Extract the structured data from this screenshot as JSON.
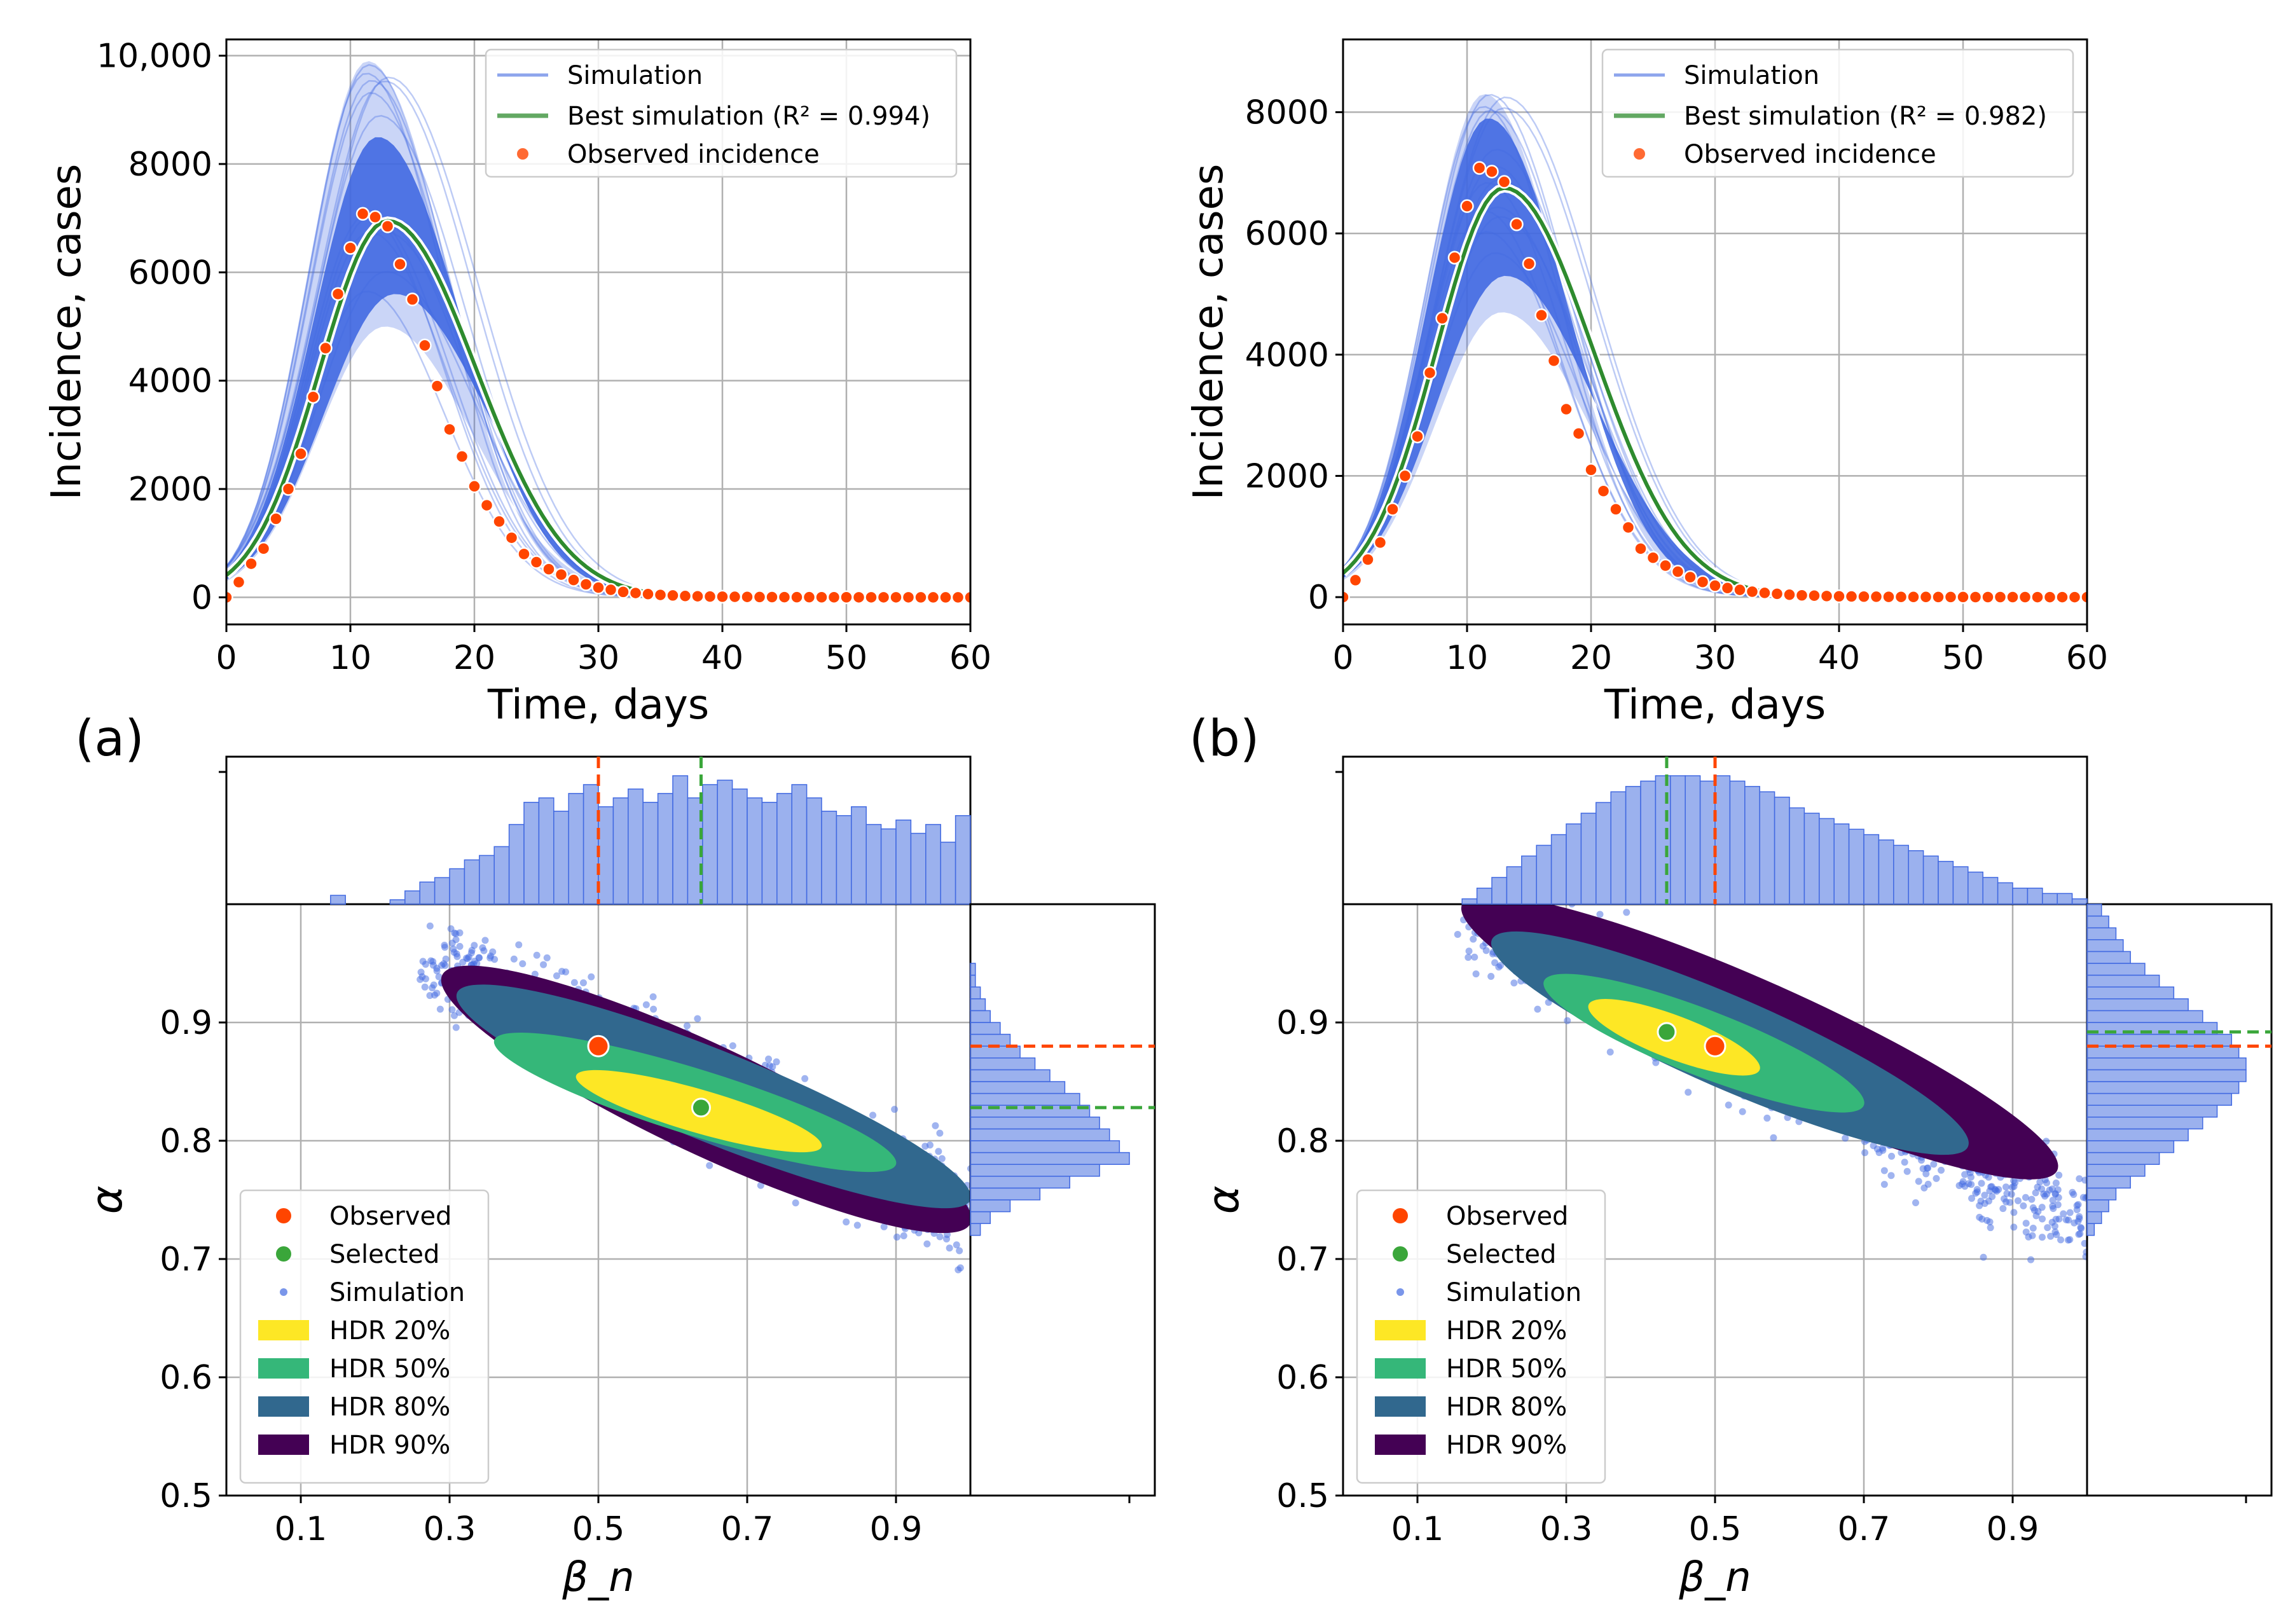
{
  "figure": {
    "panel_labels": [
      "(a)",
      "(b)"
    ],
    "colors": {
      "simulation": "#4169e1",
      "best": "#2e8b2e",
      "observed": "#ff4500",
      "selected": "#3aa63a",
      "hdr20": "#fde725",
      "hdr50": "#35b779",
      "hdr80": "#31688e",
      "hdr90": "#440154",
      "hist": "#8aa3eb"
    }
  },
  "chart_data": [
    {
      "id": "a-top",
      "type": "line",
      "title": "",
      "xlabel": "Time, days",
      "ylabel": "Incidence, cases",
      "xlim": [
        0,
        60
      ],
      "ylim": [
        -500,
        10300
      ],
      "xticks": [
        "0",
        "10",
        "20",
        "30",
        "40",
        "50",
        "60"
      ],
      "yticks": [
        "0",
        "2000",
        "4000",
        "6000",
        "8000",
        "10,000"
      ],
      "grid": true,
      "legend": {
        "position": "top-right",
        "entries": [
          "Simulation",
          "Best simulation (R² = 0.994)",
          "Observed incidence"
        ]
      },
      "band_outer": {
        "peak_day": 12,
        "lower_peak": 5000,
        "upper_peak": 9900
      },
      "band_core": {
        "peak_day": 12.8,
        "lower_peak": 5600,
        "upper_peak": 8500
      },
      "best_simulation": {
        "name": "Best simulation",
        "r2": 0.994,
        "peak_day": 13,
        "peak": 6950
      },
      "observed": {
        "name": "Observed incidence",
        "x": [
          0,
          1,
          2,
          3,
          4,
          5,
          6,
          7,
          8,
          9,
          10,
          11,
          12,
          13,
          14,
          15,
          16,
          17,
          18,
          19,
          20,
          21,
          22,
          23,
          24,
          25,
          26,
          27,
          28,
          29,
          30,
          31,
          32,
          33,
          34,
          35,
          36,
          37,
          38,
          39,
          40,
          41,
          42,
          43,
          44,
          45,
          46,
          47,
          48,
          49,
          50,
          51,
          52,
          53,
          54,
          55,
          56,
          57,
          58,
          59,
          60
        ],
        "y": [
          0,
          280,
          620,
          900,
          1450,
          2000,
          2650,
          3700,
          4600,
          5600,
          6450,
          7080,
          7020,
          6850,
          6150,
          5500,
          4650,
          3900,
          3100,
          2600,
          2050,
          1700,
          1400,
          1100,
          800,
          650,
          520,
          420,
          320,
          240,
          180,
          140,
          100,
          80,
          60,
          45,
          35,
          25,
          20,
          15,
          12,
          10,
          8,
          6,
          5,
          4,
          3,
          3,
          2,
          2,
          2,
          1,
          1,
          1,
          1,
          1,
          0,
          0,
          0,
          0,
          0
        ]
      }
    },
    {
      "id": "b-top",
      "type": "line",
      "title": "",
      "xlabel": "Time, days",
      "ylabel": "Incidence, cases",
      "xlim": [
        0,
        60
      ],
      "ylim": [
        -450,
        9200
      ],
      "xticks": [
        "0",
        "10",
        "20",
        "30",
        "40",
        "50",
        "60"
      ],
      "yticks": [
        "0",
        "2000",
        "4000",
        "6000",
        "8000"
      ],
      "grid": true,
      "legend": {
        "position": "top-right",
        "entries": [
          "Simulation",
          "Best simulation (R² = 0.982)",
          "Observed incidence"
        ]
      },
      "band_outer": {
        "peak_day": 12,
        "lower_peak": 4700,
        "upper_peak": 8300
      },
      "band_core": {
        "peak_day": 12.3,
        "lower_peak": 5300,
        "upper_peak": 7900
      },
      "best_simulation": {
        "name": "Best simulation",
        "r2": 0.982,
        "peak_day": 13,
        "peak": 6750
      },
      "observed": {
        "name": "Observed incidence",
        "x": [
          0,
          1,
          2,
          3,
          4,
          5,
          6,
          7,
          8,
          9,
          10,
          11,
          12,
          13,
          14,
          15,
          16,
          17,
          18,
          19,
          20,
          21,
          22,
          23,
          24,
          25,
          26,
          27,
          28,
          29,
          30,
          31,
          32,
          33,
          34,
          35,
          36,
          37,
          38,
          39,
          40,
          41,
          42,
          43,
          44,
          45,
          46,
          47,
          48,
          49,
          50,
          51,
          52,
          53,
          54,
          55,
          56,
          57,
          58,
          59,
          60
        ],
        "y": [
          0,
          280,
          620,
          900,
          1450,
          2000,
          2650,
          3700,
          4600,
          5600,
          6450,
          7080,
          7020,
          6850,
          6150,
          5500,
          4650,
          3900,
          3100,
          2700,
          2100,
          1750,
          1450,
          1150,
          800,
          650,
          520,
          420,
          330,
          250,
          190,
          150,
          120,
          90,
          70,
          55,
          40,
          30,
          25,
          18,
          14,
          11,
          9,
          7,
          5,
          4,
          3,
          3,
          2,
          2,
          2,
          1,
          1,
          1,
          1,
          1,
          0,
          0,
          0,
          0,
          0
        ]
      }
    },
    {
      "id": "a-bottom",
      "type": "scatter",
      "xlabel": "β_n",
      "ylabel": "α",
      "xlim": [
        0,
        1
      ],
      "ylim": [
        0.5,
        1
      ],
      "xticks": [
        "0.1",
        "0.3",
        "0.5",
        "0.7",
        "0.9"
      ],
      "yticks": [
        "0.5",
        "0.6",
        "0.7",
        "0.8",
        "0.9"
      ],
      "grid": true,
      "observed": {
        "name": "Observed",
        "beta": 0.5,
        "alpha": 0.88
      },
      "selected": {
        "name": "Selected",
        "beta": 0.638,
        "alpha": 0.828
      },
      "simulation_trend": {
        "beta_start": 0.28,
        "alpha_start": 0.95,
        "beta_end": 1.0,
        "alpha_end": 0.74
      },
      "hdr_regions": [
        {
          "label": "HDR 20%",
          "beta": [
            0.47,
            0.8
          ],
          "alpha": [
            0.855,
            0.795
          ]
        },
        {
          "label": "HDR 50%",
          "beta": [
            0.36,
            0.9
          ],
          "alpha": [
            0.885,
            0.78
          ]
        },
        {
          "label": "HDR 80%",
          "beta": [
            0.31,
            1.0
          ],
          "alpha": [
            0.925,
            0.75
          ]
        },
        {
          "label": "HDR 90%",
          "beta": [
            0.29,
            1.0
          ],
          "alpha": [
            0.94,
            0.73
          ]
        }
      ],
      "legend": {
        "position": "lower-left",
        "entries": [
          "Observed",
          "Selected",
          "Simulation",
          "HDR 20%",
          "HDR 50%",
          "HDR 80%",
          "HDR 90%"
        ]
      },
      "marginal_beta": {
        "bins": [
          0.14,
          0.16,
          0.18,
          0.2,
          0.22,
          0.24,
          0.26,
          0.28,
          0.3,
          0.32,
          0.34,
          0.36,
          0.38,
          0.4,
          0.42,
          0.44,
          0.46,
          0.48,
          0.5,
          0.52,
          0.54,
          0.56,
          0.58,
          0.6,
          0.62,
          0.64,
          0.66,
          0.68,
          0.7,
          0.72,
          0.74,
          0.76,
          0.78,
          0.8,
          0.82,
          0.84,
          0.86,
          0.88,
          0.9,
          0.92,
          0.94,
          0.96,
          0.98
        ],
        "counts": [
          2,
          0,
          0,
          0,
          1,
          3,
          5,
          6,
          8,
          10,
          11,
          13,
          18,
          23,
          24,
          21,
          25,
          27,
          22,
          24,
          26,
          23,
          25,
          29,
          24,
          27,
          28,
          26,
          24,
          23,
          25,
          27,
          24,
          21,
          20,
          22,
          18,
          17,
          19,
          16,
          18,
          14,
          20
        ],
        "observed_line": 0.5,
        "selected_line": 0.638
      },
      "marginal_alpha": {
        "bins": [
          0.72,
          0.73,
          0.74,
          0.75,
          0.76,
          0.77,
          0.78,
          0.79,
          0.8,
          0.81,
          0.82,
          0.83,
          0.84,
          0.85,
          0.86,
          0.87,
          0.88,
          0.89,
          0.9,
          0.91,
          0.92,
          0.93,
          0.94
        ],
        "counts": [
          2,
          4,
          8,
          14,
          20,
          26,
          32,
          30,
          28,
          26,
          24,
          22,
          19,
          16,
          13,
          10,
          8,
          6,
          4,
          3,
          2,
          1,
          1
        ],
        "observed_line": 0.88,
        "selected_line": 0.828
      }
    },
    {
      "id": "b-bottom",
      "type": "scatter",
      "xlabel": "β_n",
      "ylabel": "α",
      "xlim": [
        0,
        1
      ],
      "ylim": [
        0.5,
        1
      ],
      "xticks": [
        "0.1",
        "0.3",
        "0.5",
        "0.7",
        "0.9"
      ],
      "yticks": [
        "0.5",
        "0.6",
        "0.7",
        "0.8",
        "0.9"
      ],
      "grid": true,
      "observed": {
        "name": "Observed",
        "beta": 0.5,
        "alpha": 0.88
      },
      "selected": {
        "name": "Selected",
        "beta": 0.435,
        "alpha": 0.892
      },
      "simulation_trend": {
        "beta_start": 0.16,
        "alpha_start": 1.0,
        "beta_end": 1.0,
        "alpha_end": 0.73
      },
      "hdr_regions": [
        {
          "label": "HDR 20%",
          "beta": [
            0.33,
            0.56
          ],
          "alpha": [
            0.915,
            0.86
          ]
        },
        {
          "label": "HDR 50%",
          "beta": [
            0.27,
            0.7
          ],
          "alpha": [
            0.935,
            0.83
          ]
        },
        {
          "label": "HDR 80%",
          "beta": [
            0.2,
            0.84
          ],
          "alpha": [
            0.97,
            0.795
          ]
        },
        {
          "label": "HDR 90%",
          "beta": [
            0.16,
            0.96
          ],
          "alpha": [
            1.0,
            0.775
          ]
        }
      ],
      "legend": {
        "position": "lower-left",
        "entries": [
          "Observed",
          "Selected",
          "Simulation",
          "HDR 20%",
          "HDR 50%",
          "HDR 80%",
          "HDR 90%"
        ]
      },
      "marginal_beta": {
        "bins": [
          0.16,
          0.18,
          0.2,
          0.22,
          0.24,
          0.26,
          0.28,
          0.3,
          0.32,
          0.34,
          0.36,
          0.38,
          0.4,
          0.42,
          0.44,
          0.46,
          0.48,
          0.5,
          0.52,
          0.54,
          0.56,
          0.58,
          0.6,
          0.62,
          0.64,
          0.66,
          0.68,
          0.7,
          0.72,
          0.74,
          0.76,
          0.78,
          0.8,
          0.82,
          0.84,
          0.86,
          0.88,
          0.9,
          0.92,
          0.94,
          0.96,
          0.98
        ],
        "counts": [
          1,
          3,
          5,
          7,
          9,
          11,
          13,
          15,
          17,
          19,
          21,
          22,
          23,
          24,
          24,
          24,
          23,
          24,
          23,
          22,
          21,
          20,
          18,
          17,
          16,
          15,
          14,
          13,
          12,
          11,
          10,
          9,
          8,
          7,
          6,
          5,
          4,
          3,
          3,
          2,
          2,
          1
        ],
        "observed_line": 0.5,
        "selected_line": 0.435
      },
      "marginal_alpha": {
        "bins": [
          0.72,
          0.73,
          0.74,
          0.75,
          0.76,
          0.77,
          0.78,
          0.79,
          0.8,
          0.81,
          0.82,
          0.83,
          0.84,
          0.85,
          0.86,
          0.87,
          0.88,
          0.89,
          0.9,
          0.91,
          0.92,
          0.93,
          0.94,
          0.95,
          0.96,
          0.97,
          0.98,
          0.99
        ],
        "counts": [
          1,
          2,
          3,
          4,
          6,
          8,
          10,
          12,
          14,
          16,
          18,
          20,
          21,
          22,
          22,
          21,
          20,
          18,
          16,
          14,
          12,
          10,
          8,
          6,
          5,
          4,
          3,
          2
        ],
        "observed_line": 0.88,
        "selected_line": 0.892
      }
    }
  ]
}
